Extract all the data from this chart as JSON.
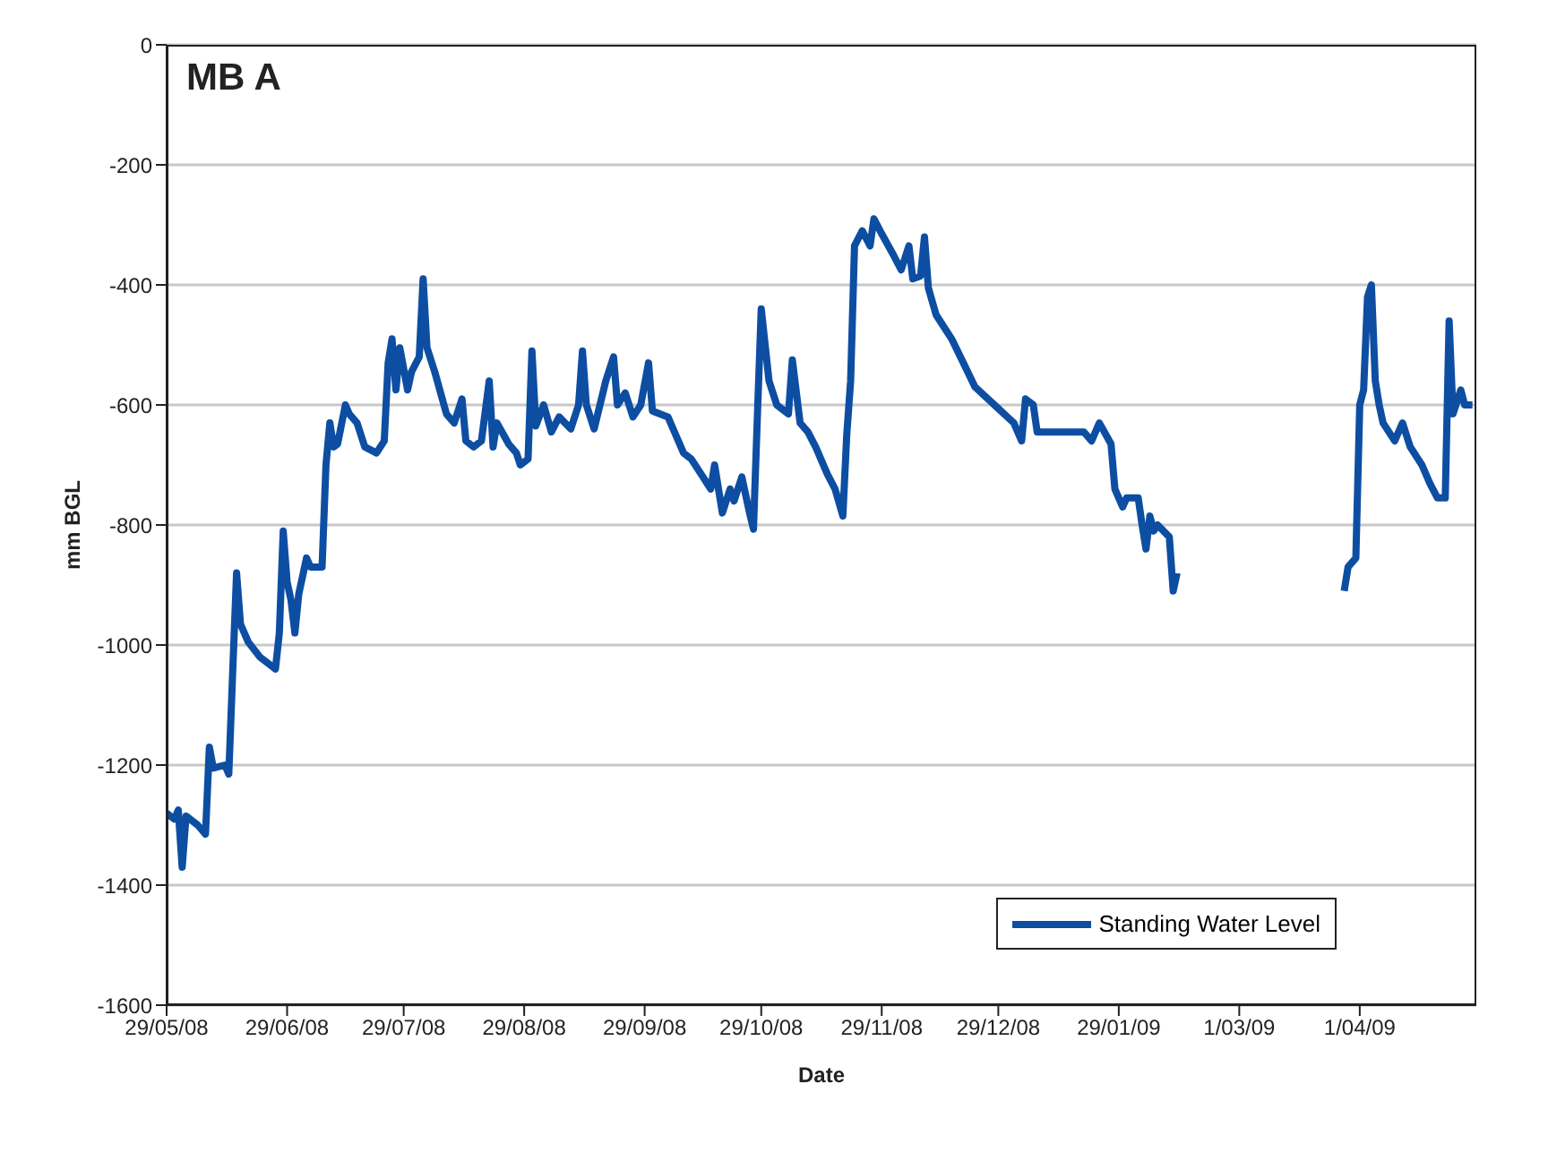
{
  "chart_data": {
    "type": "line",
    "title": "MB A",
    "xlabel": "Date",
    "ylabel": "mm BGL",
    "xlim": [
      "2008-05-29",
      "2009-05-01"
    ],
    "xticks": [
      {
        "value": "2008-05-29",
        "label": "29/05/08"
      },
      {
        "value": "2008-06-29",
        "label": "29/06/08"
      },
      {
        "value": "2008-07-29",
        "label": "29/07/08"
      },
      {
        "value": "2008-08-29",
        "label": "29/08/08"
      },
      {
        "value": "2008-09-29",
        "label": "29/09/08"
      },
      {
        "value": "2008-10-29",
        "label": "29/10/08"
      },
      {
        "value": "2008-11-29",
        "label": "29/11/08"
      },
      {
        "value": "2008-12-29",
        "label": "29/12/08"
      },
      {
        "value": "2009-01-29",
        "label": "29/01/09"
      },
      {
        "value": "2009-03-01",
        "label": "1/03/09"
      },
      {
        "value": "2009-04-01",
        "label": "1/04/09"
      }
    ],
    "ylim": [
      -1600,
      0
    ],
    "yticks": [
      -1600,
      -1400,
      -1200,
      -1000,
      -800,
      -600,
      -400,
      -200,
      0
    ],
    "grid": "y",
    "legend": "bottom right",
    "marker": "none",
    "line_style": "solid",
    "x": [
      "2008-05-29",
      "2008-05-31",
      "2008-06-01",
      "2008-06-02",
      "2008-06-03",
      "2008-06-06",
      "2008-06-08",
      "2008-06-09",
      "2008-06-10",
      "2008-06-13",
      "2008-06-14",
      "2008-06-15",
      "2008-06-16",
      "2008-06-17",
      "2008-06-19",
      "2008-06-22",
      "2008-06-25",
      "2008-06-26",
      "2008-06-27",
      "2008-06-28",
      "2008-06-29",
      "2008-06-30",
      "2008-07-01",
      "2008-07-02",
      "2008-07-04",
      "2008-07-05",
      "2008-07-08",
      "2008-07-09",
      "2008-07-10",
      "2008-07-11",
      "2008-07-12",
      "2008-07-14",
      "2008-07-15",
      "2008-07-17",
      "2008-07-19",
      "2008-07-22",
      "2008-07-24",
      "2008-07-25",
      "2008-07-26",
      "2008-07-27",
      "2008-07-28",
      "2008-07-30",
      "2008-07-31",
      "2008-08-02",
      "2008-08-03",
      "2008-08-04",
      "2008-08-06",
      "2008-08-09",
      "2008-08-11",
      "2008-08-13",
      "2008-08-14",
      "2008-08-16",
      "2008-08-18",
      "2008-08-20",
      "2008-08-21",
      "2008-08-22",
      "2008-08-25",
      "2008-08-27",
      "2008-08-28",
      "2008-08-30",
      "2008-08-31",
      "2008-09-01",
      "2008-09-03",
      "2008-09-05",
      "2008-09-07",
      "2008-09-10",
      "2008-09-12",
      "2008-09-13",
      "2008-09-14",
      "2008-09-16",
      "2008-09-19",
      "2008-09-21",
      "2008-09-22",
      "2008-09-24",
      "2008-09-26",
      "2008-09-28",
      "2008-09-30",
      "2008-10-01",
      "2008-10-05",
      "2008-10-07",
      "2008-10-09",
      "2008-10-11",
      "2008-10-14",
      "2008-10-16",
      "2008-10-17",
      "2008-10-19",
      "2008-10-21",
      "2008-10-22",
      "2008-10-24",
      "2008-10-26",
      "2008-10-27",
      "2008-10-28",
      "2008-10-29",
      "2008-10-31",
      "2008-11-02",
      "2008-11-05",
      "2008-11-06",
      "2008-11-08",
      "2008-11-10",
      "2008-11-12",
      "2008-11-15",
      "2008-11-17",
      "2008-11-19",
      "2008-11-20",
      "2008-11-21",
      "2008-11-22",
      "2008-11-24",
      "2008-11-26",
      "2008-11-27",
      "2008-11-29",
      "2008-12-02",
      "2008-12-04",
      "2008-12-06",
      "2008-12-07",
      "2008-12-09",
      "2008-12-10",
      "2008-12-11",
      "2008-12-13",
      "2008-12-17",
      "2008-12-20",
      "2008-12-23",
      "2008-12-28",
      "2009-01-02",
      "2009-01-04",
      "2009-01-05",
      "2009-01-07",
      "2009-01-08",
      "2009-01-11",
      "2009-01-15",
      "2009-01-20",
      "2009-01-22",
      "2009-01-24",
      "2009-01-27",
      "2009-01-28",
      "2009-01-30",
      "2009-01-31",
      "2009-02-03",
      "2009-02-04",
      "2009-02-05",
      "2009-02-06",
      "2009-02-07",
      "2009-02-08",
      "2009-02-11",
      "2009-02-12",
      "2009-02-13",
      "2009-03-01",
      "2009-03-28",
      "2009-03-29",
      "2009-03-31",
      "2009-04-01",
      "2009-04-02",
      "2009-04-03",
      "2009-04-04",
      "2009-04-05",
      "2009-04-06",
      "2009-04-07",
      "2009-04-10",
      "2009-04-12",
      "2009-04-14",
      "2009-04-17",
      "2009-04-19",
      "2009-04-21",
      "2009-04-23",
      "2009-04-24",
      "2009-04-25",
      "2009-04-27",
      "2009-04-28",
      "2009-04-30"
    ],
    "series": [
      {
        "name": "Standing Water Level",
        "color": "#0d4ea3",
        "values": [
          -1280,
          -1290,
          -1275,
          -1370,
          -1285,
          -1300,
          -1315,
          -1170,
          -1205,
          -1200,
          -1215,
          -1045,
          -880,
          -965,
          -995,
          -1020,
          -1035,
          -1040,
          -980,
          -810,
          -895,
          -925,
          -980,
          -915,
          -855,
          -870,
          -870,
          -700,
          -630,
          -670,
          -665,
          -600,
          -615,
          -630,
          -670,
          -680,
          -660,
          -530,
          -490,
          -575,
          -505,
          -575,
          -545,
          -520,
          -390,
          -505,
          -545,
          -615,
          -630,
          -590,
          -660,
          -670,
          -660,
          -560,
          -670,
          -630,
          -665,
          -680,
          -700,
          -690,
          -510,
          -635,
          -600,
          -645,
          -620,
          -640,
          -600,
          -510,
          -600,
          -640,
          -560,
          -520,
          -600,
          -580,
          -620,
          -600,
          -530,
          -610,
          -620,
          -650,
          -680,
          -690,
          -720,
          -740,
          -700,
          -780,
          -740,
          -760,
          -720,
          -780,
          -807,
          -620,
          -440,
          -560,
          -600,
          -615,
          -525,
          -630,
          -645,
          -670,
          -715,
          -740,
          -785,
          -650,
          -560,
          -335,
          -310,
          -335,
          -290,
          -315,
          -350,
          -375,
          -335,
          -390,
          -385,
          -320,
          -405,
          -450,
          -490,
          -530,
          -570,
          -600,
          -630,
          -660,
          -590,
          -600,
          -645,
          -645,
          -645,
          -645,
          -660,
          -630,
          -665,
          -740,
          -770,
          -755,
          -755,
          -800,
          -840,
          -785,
          -810,
          -800,
          -820,
          -910,
          -880,
          null,
          -910,
          -870,
          -855,
          -600,
          -575,
          -420,
          -400,
          -560,
          -600,
          -630,
          -660,
          -630,
          -670,
          -700,
          -730,
          -755,
          -755,
          -460,
          -615,
          -575,
          -600,
          -600
        ]
      }
    ]
  }
}
